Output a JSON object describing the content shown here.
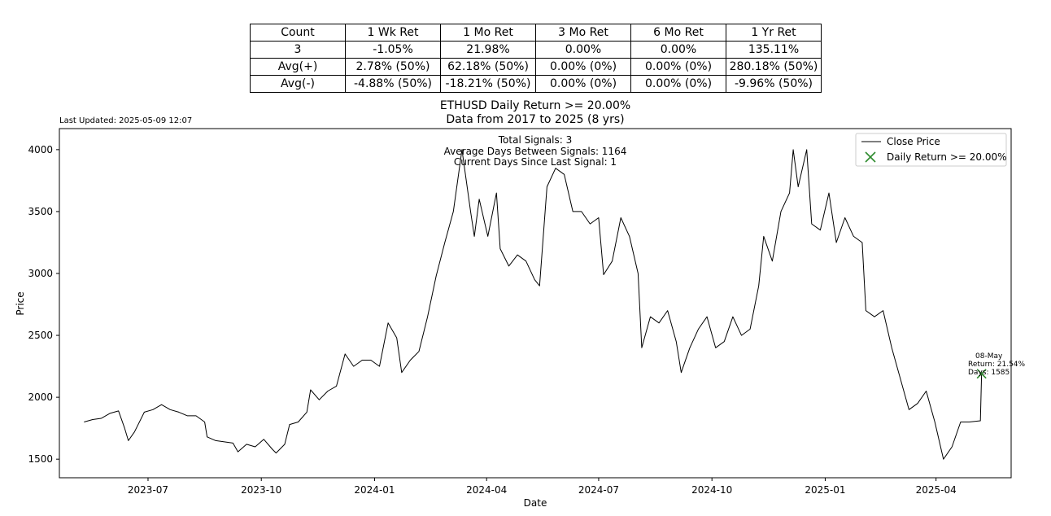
{
  "table": {
    "headers": [
      "Count",
      "1 Wk Ret",
      "1 Mo Ret",
      "3 Mo Ret",
      "6 Mo Ret",
      "1 Yr Ret"
    ],
    "rows": [
      [
        "3",
        "-1.05%",
        "21.98%",
        "0.00%",
        "0.00%",
        "135.11%"
      ],
      [
        "Avg(+)",
        "2.78% (50%)",
        "62.18% (50%)",
        "0.00% (0%)",
        "0.00% (0%)",
        "280.18% (50%)"
      ],
      [
        "Avg(-)",
        "-4.88% (50%)",
        "-18.21% (50%)",
        "0.00% (0%)",
        "0.00% (0%)",
        "-9.96% (50%)"
      ]
    ]
  },
  "last_updated": "Last Updated: 2025-05-09 12:07",
  "stats_box": [
    "Total Signals: 3",
    "Average Days Between Signals: 1164",
    "Current Days Since Last Signal: 1"
  ],
  "signal_annotation": [
    "08-May",
    "Return: 21.54%",
    "Days: 1585"
  ],
  "colors": {
    "line": "#000000",
    "marker": "#2e8b2e"
  },
  "chart_data": {
    "type": "line",
    "title": "ETHUSD Daily Return >= 20.00%",
    "subtitle": "Data from 2017 to 2025 (8 yrs)",
    "xlabel": "Date",
    "ylabel": "Price",
    "xlim": [
      "2023-04-20",
      "2025-06-01"
    ],
    "ylim": [
      1350,
      4170
    ],
    "xticks": [
      "2023-07",
      "2023-10",
      "2024-01",
      "2024-04",
      "2024-07",
      "2024-10",
      "2025-01",
      "2025-04"
    ],
    "xtick_dates": [
      "2023-07-01",
      "2023-10-01",
      "2024-01-01",
      "2024-04-01",
      "2024-07-01",
      "2024-10-01",
      "2025-01-01",
      "2025-04-01"
    ],
    "yticks": [
      1500,
      2000,
      2500,
      3000,
      3500,
      4000
    ],
    "grid": false,
    "legend": {
      "position": "top-right",
      "entries": [
        "Close Price",
        "Daily Return >= 20.00%"
      ]
    },
    "series": [
      {
        "name": "Close Price",
        "type": "line",
        "points": [
          [
            "2023-05-10",
            1800
          ],
          [
            "2023-05-17",
            1820
          ],
          [
            "2023-05-24",
            1830
          ],
          [
            "2023-05-31",
            1870
          ],
          [
            "2023-06-07",
            1890
          ],
          [
            "2023-06-12",
            1750
          ],
          [
            "2023-06-15",
            1650
          ],
          [
            "2023-06-20",
            1720
          ],
          [
            "2023-06-28",
            1880
          ],
          [
            "2023-07-05",
            1900
          ],
          [
            "2023-07-12",
            1940
          ],
          [
            "2023-07-19",
            1900
          ],
          [
            "2023-07-26",
            1880
          ],
          [
            "2023-08-02",
            1850
          ],
          [
            "2023-08-09",
            1850
          ],
          [
            "2023-08-16",
            1800
          ],
          [
            "2023-08-18",
            1680
          ],
          [
            "2023-08-25",
            1650
          ],
          [
            "2023-09-01",
            1640
          ],
          [
            "2023-09-08",
            1630
          ],
          [
            "2023-09-12",
            1560
          ],
          [
            "2023-09-19",
            1620
          ],
          [
            "2023-09-26",
            1600
          ],
          [
            "2023-10-03",
            1660
          ],
          [
            "2023-10-10",
            1580
          ],
          [
            "2023-10-13",
            1550
          ],
          [
            "2023-10-20",
            1620
          ],
          [
            "2023-10-24",
            1780
          ],
          [
            "2023-10-31",
            1800
          ],
          [
            "2023-11-07",
            1880
          ],
          [
            "2023-11-10",
            2060
          ],
          [
            "2023-11-17",
            1980
          ],
          [
            "2023-11-24",
            2050
          ],
          [
            "2023-12-01",
            2090
          ],
          [
            "2023-12-08",
            2350
          ],
          [
            "2023-12-15",
            2250
          ],
          [
            "2023-12-22",
            2300
          ],
          [
            "2023-12-29",
            2300
          ],
          [
            "2024-01-05",
            2250
          ],
          [
            "2024-01-12",
            2600
          ],
          [
            "2024-01-19",
            2480
          ],
          [
            "2024-01-23",
            2200
          ],
          [
            "2024-01-30",
            2300
          ],
          [
            "2024-02-06",
            2370
          ],
          [
            "2024-02-13",
            2650
          ],
          [
            "2024-02-20",
            2980
          ],
          [
            "2024-02-27",
            3250
          ],
          [
            "2024-03-05",
            3500
          ],
          [
            "2024-03-12",
            4000
          ],
          [
            "2024-03-19",
            3500
          ],
          [
            "2024-03-22",
            3300
          ],
          [
            "2024-03-26",
            3600
          ],
          [
            "2024-04-02",
            3300
          ],
          [
            "2024-04-09",
            3650
          ],
          [
            "2024-04-12",
            3200
          ],
          [
            "2024-04-19",
            3060
          ],
          [
            "2024-04-26",
            3150
          ],
          [
            "2024-05-03",
            3100
          ],
          [
            "2024-05-10",
            2950
          ],
          [
            "2024-05-14",
            2900
          ],
          [
            "2024-05-20",
            3700
          ],
          [
            "2024-05-27",
            3850
          ],
          [
            "2024-06-03",
            3800
          ],
          [
            "2024-06-10",
            3500
          ],
          [
            "2024-06-17",
            3500
          ],
          [
            "2024-06-24",
            3400
          ],
          [
            "2024-07-01",
            3450
          ],
          [
            "2024-07-05",
            2990
          ],
          [
            "2024-07-12",
            3100
          ],
          [
            "2024-07-19",
            3450
          ],
          [
            "2024-07-26",
            3300
          ],
          [
            "2024-08-02",
            3000
          ],
          [
            "2024-08-05",
            2400
          ],
          [
            "2024-08-12",
            2650
          ],
          [
            "2024-08-19",
            2600
          ],
          [
            "2024-08-26",
            2700
          ],
          [
            "2024-09-02",
            2450
          ],
          [
            "2024-09-06",
            2200
          ],
          [
            "2024-09-13",
            2400
          ],
          [
            "2024-09-20",
            2550
          ],
          [
            "2024-09-27",
            2650
          ],
          [
            "2024-10-04",
            2400
          ],
          [
            "2024-10-11",
            2450
          ],
          [
            "2024-10-18",
            2650
          ],
          [
            "2024-10-25",
            2500
          ],
          [
            "2024-11-01",
            2550
          ],
          [
            "2024-11-08",
            2900
          ],
          [
            "2024-11-12",
            3300
          ],
          [
            "2024-11-19",
            3100
          ],
          [
            "2024-11-26",
            3500
          ],
          [
            "2024-12-03",
            3650
          ],
          [
            "2024-12-06",
            4000
          ],
          [
            "2024-12-10",
            3700
          ],
          [
            "2024-12-17",
            4000
          ],
          [
            "2024-12-21",
            3400
          ],
          [
            "2024-12-28",
            3350
          ],
          [
            "2025-01-04",
            3650
          ],
          [
            "2025-01-10",
            3250
          ],
          [
            "2025-01-17",
            3450
          ],
          [
            "2025-01-24",
            3300
          ],
          [
            "2025-01-31",
            3250
          ],
          [
            "2025-02-03",
            2700
          ],
          [
            "2025-02-10",
            2650
          ],
          [
            "2025-02-17",
            2700
          ],
          [
            "2025-02-24",
            2400
          ],
          [
            "2025-03-03",
            2150
          ],
          [
            "2025-03-10",
            1900
          ],
          [
            "2025-03-17",
            1950
          ],
          [
            "2025-03-24",
            2050
          ],
          [
            "2025-03-31",
            1800
          ],
          [
            "2025-04-07",
            1500
          ],
          [
            "2025-04-14",
            1600
          ],
          [
            "2025-04-21",
            1800
          ],
          [
            "2025-04-28",
            1800
          ],
          [
            "2025-05-07",
            1810
          ],
          [
            "2025-05-08",
            2200
          ]
        ]
      },
      {
        "name": "Daily Return >= 20.00%",
        "type": "scatter",
        "marker": "x",
        "points": [
          [
            "2025-05-08",
            2190
          ]
        ]
      }
    ]
  }
}
